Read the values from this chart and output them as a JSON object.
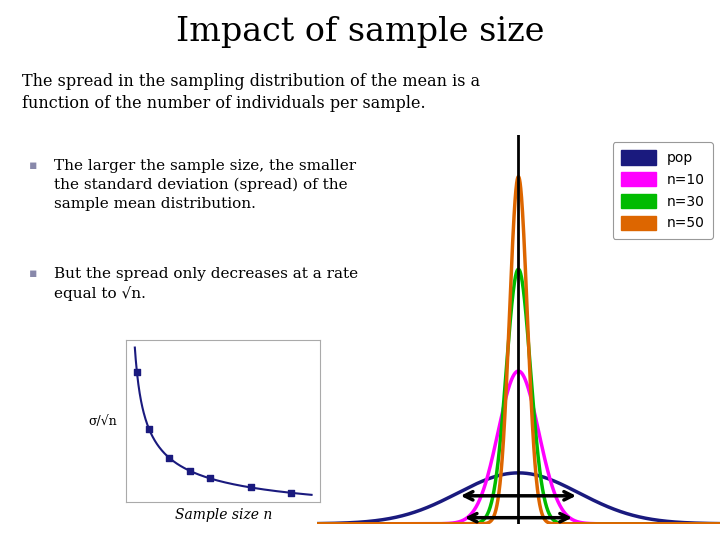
{
  "title": "Impact of sample size",
  "subtitle": "The spread in the sampling distribution of the mean is a\nfunction of the number of individuals per sample.",
  "bullet1": "The larger the sample size, the smaller\nthe standard deviation (spread) of the\nsample mean distribution.",
  "bullet2": "But the spread only decreases at a rate\nequal to √n.",
  "bg_color": "#ffffff",
  "text_color": "#000000",
  "bullet_color": "#8888aa",
  "curve_colors": {
    "pop": "#1a1a7e",
    "n10": "#ff00ff",
    "n30": "#00bb00",
    "n50": "#dd6600"
  },
  "legend_labels": [
    "pop",
    "n=10",
    "n=30",
    "n=50"
  ],
  "legend_colors": [
    "#1a1a7e",
    "#ff00ff",
    "#00bb00",
    "#dd6600"
  ],
  "scatter_color": "#1a1a7e",
  "curve_sigma": {
    "pop": 1.5,
    "n10": 0.5,
    "n30": 0.3,
    "n50": 0.22
  },
  "left_plot_xlabel": "Sample size n",
  "left_plot_ylabel": "σ/√n",
  "arrow_lw": 2.5
}
